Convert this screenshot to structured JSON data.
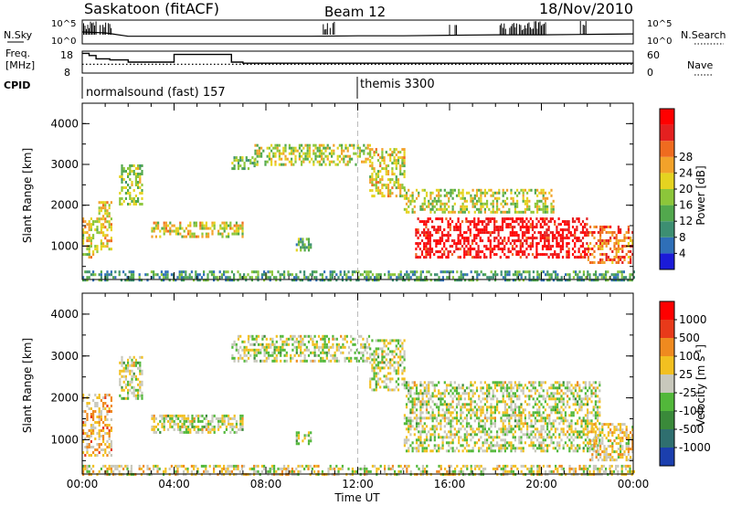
{
  "header": {
    "station": "Saskatoon (fitACF)",
    "beam": "Beam 12",
    "date": "18/Nov/2010"
  },
  "strip": {
    "nsky_label": "N.Sky",
    "nsky_ticks": [
      "10^5",
      "10^0"
    ],
    "nsearch_label": "N.Search",
    "nsearch_ticks": [
      "10^5",
      "10^0"
    ],
    "freq_label": [
      "Freq.",
      "[MHz]"
    ],
    "freq_ticks": [
      "18",
      "8"
    ],
    "nave_label": "Nave",
    "nave_ticks": [
      "60",
      "0"
    ],
    "cpid_label": "CPID",
    "cpid_programs": [
      {
        "name": "normalsound (fast) 157",
        "start_hour": 0
      },
      {
        "name": "themis 3300",
        "start_hour": 12
      }
    ]
  },
  "chart_data": [
    {
      "type": "line",
      "title": "",
      "series": [
        {
          "name": "N.Sky",
          "x_hours": [
            0,
            0.5,
            1,
            2,
            4,
            6,
            8,
            10,
            12,
            14,
            16,
            18,
            20,
            22,
            24
          ],
          "values_log10": [
            2.5,
            2.4,
            2.3,
            1.6,
            1.6,
            1.6,
            1.6,
            1.6,
            1.7,
            1.7,
            1.8,
            1.9,
            1.9,
            2.0,
            2.1
          ]
        },
        {
          "name": "Freq. [MHz]",
          "x_hours": [
            0,
            0.3,
            0.6,
            1.2,
            2,
            2.5,
            4,
            4.5,
            5.5,
            6.5,
            7,
            24
          ],
          "values": [
            17,
            16,
            14.5,
            14,
            13,
            13,
            16.5,
            16.5,
            16.5,
            13,
            12.5,
            12.5
          ]
        },
        {
          "name": "Nave",
          "x_hours": [
            0,
            24
          ],
          "values": [
            24,
            24
          ]
        }
      ],
      "xlim": [
        0,
        24
      ],
      "freq_ylim": [
        8,
        18
      ],
      "nave_ylim": [
        0,
        60
      ]
    },
    {
      "type": "heatmap",
      "title": "",
      "ylabel": "Slant Range [km]",
      "xlabel": "",
      "xlim": [
        0,
        24
      ],
      "ylim": [
        180,
        4500
      ],
      "y_ticks": [
        "1000",
        "2000",
        "3000",
        "4000"
      ],
      "colorbar_label": "Power [dB]",
      "colorbar_ticks": [
        "4",
        "8",
        "12",
        "16",
        "20",
        "24",
        "28"
      ],
      "colorbar_colors": [
        "#1b1bd8",
        "#2f6fb8",
        "#3d8f72",
        "#52a84d",
        "#8cc63a",
        "#e5d320",
        "#f2a22a",
        "#ef6b1f",
        "#e42020",
        "#ff0000"
      ],
      "regions": [
        {
          "t0": 0.0,
          "t1": 0.7,
          "r0": 700,
          "r1": 1700,
          "level": 0.55
        },
        {
          "t0": 0.7,
          "t1": 1.3,
          "r0": 900,
          "r1": 2100,
          "level": 0.6
        },
        {
          "t0": 1.6,
          "t1": 2.6,
          "r0": 2000,
          "r1": 3000,
          "level": 0.45
        },
        {
          "t0": 3.0,
          "t1": 7.0,
          "r0": 1200,
          "r1": 1600,
          "level": 0.55
        },
        {
          "t0": 9.3,
          "t1": 10.0,
          "r0": 900,
          "r1": 1200,
          "level": 0.35
        },
        {
          "t0": 6.5,
          "t1": 7.5,
          "r0": 2900,
          "r1": 3200,
          "level": 0.4
        },
        {
          "t0": 7.5,
          "t1": 12.5,
          "r0": 3000,
          "r1": 3500,
          "level": 0.5
        },
        {
          "t0": 12.5,
          "t1": 14.0,
          "r0": 2200,
          "r1": 3400,
          "level": 0.55
        },
        {
          "t0": 14.0,
          "t1": 20.5,
          "r0": 1800,
          "r1": 2400,
          "level": 0.5
        },
        {
          "t0": 14.5,
          "t1": 22.0,
          "r0": 700,
          "r1": 1700,
          "level": 0.95
        },
        {
          "t0": 22.0,
          "t1": 24.0,
          "r0": 600,
          "r1": 1500,
          "level": 0.75
        },
        {
          "t0": 0.0,
          "t1": 24.0,
          "r0": 180,
          "r1": 400,
          "level": 0.3
        }
      ]
    },
    {
      "type": "heatmap",
      "title": "",
      "ylabel": "Slant Range [km]",
      "xlabel": "Time UT",
      "xlim": [
        0,
        24
      ],
      "ylim": [
        180,
        4500
      ],
      "y_ticks": [
        "1000",
        "2000",
        "3000",
        "4000"
      ],
      "x_ticks": [
        "00:00",
        "04:00",
        "08:00",
        "12:00",
        "16:00",
        "20:00",
        "00:00"
      ],
      "colorbar_label": "Velocity [m s",
      "colorbar_label_sup": "-1",
      "colorbar_label_end": "]",
      "colorbar_ticks": [
        "1000",
        "500",
        "100",
        "25",
        "-25",
        "-100",
        "-500",
        "-1000"
      ],
      "colorbar_colors": [
        "#1b3fae",
        "#2f6f6f",
        "#3a8a3a",
        "#52b83a",
        "#c8c8bc",
        "#f2c020",
        "#ef8a1f",
        "#e83a1a",
        "#ff0000"
      ],
      "regions": [
        {
          "t0": 0.0,
          "t1": 1.3,
          "r0": 600,
          "r1": 2100,
          "level": 0.62
        },
        {
          "t0": 1.6,
          "t1": 2.6,
          "r0": 2000,
          "r1": 3000,
          "level": 0.5
        },
        {
          "t0": 3.0,
          "t1": 7.0,
          "r0": 1200,
          "r1": 1600,
          "level": 0.5
        },
        {
          "t0": 9.3,
          "t1": 10.0,
          "r0": 900,
          "r1": 1200,
          "level": 0.5
        },
        {
          "t0": 6.5,
          "t1": 12.5,
          "r0": 2900,
          "r1": 3500,
          "level": 0.5
        },
        {
          "t0": 12.5,
          "t1": 14.0,
          "r0": 2200,
          "r1": 3400,
          "level": 0.5
        },
        {
          "t0": 14.0,
          "t1": 22.5,
          "r0": 700,
          "r1": 2400,
          "level": 0.5
        },
        {
          "t0": 22.0,
          "t1": 24.0,
          "r0": 500,
          "r1": 1400,
          "level": 0.58
        },
        {
          "t0": 0.0,
          "t1": 24.0,
          "r0": 180,
          "r1": 400,
          "level": 0.55
        }
      ]
    }
  ]
}
